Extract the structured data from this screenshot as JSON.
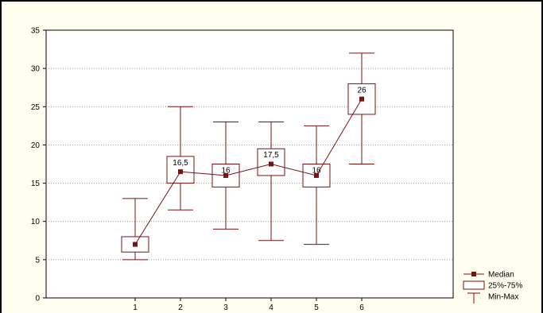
{
  "chart_data": {
    "type": "boxplot",
    "categories": [
      "1",
      "2",
      "3",
      "4",
      "5",
      "6"
    ],
    "median": [
      7,
      16.5,
      16,
      17.5,
      16,
      26
    ],
    "median_labels": [
      "",
      "16,5",
      "16",
      "17,5",
      "16",
      "26"
    ],
    "q1": [
      6,
      15,
      14.5,
      16,
      14.5,
      24
    ],
    "q3": [
      8,
      18.5,
      17.5,
      19.5,
      17.5,
      28
    ],
    "min": [
      5,
      11.5,
      9,
      7.5,
      7,
      17.5
    ],
    "max": [
      13,
      25,
      23,
      23,
      22.5,
      32
    ],
    "ylim": [
      0,
      35
    ],
    "yticks": [
      0,
      5,
      10,
      15,
      20,
      25,
      30,
      35
    ],
    "grid": true,
    "legend_position": "bottom-right",
    "legend": {
      "median": "Median",
      "box": "25%-75%",
      "whisker": "Min-Max"
    },
    "colors": {
      "series": "#7a1010",
      "plot_background": "#ffffff",
      "outer_background": "#fffef0",
      "grid": "#9a9a9a"
    }
  }
}
